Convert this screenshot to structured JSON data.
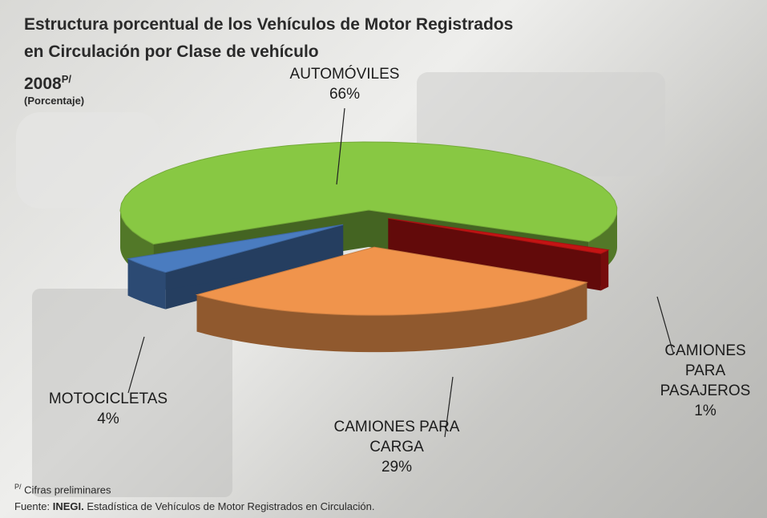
{
  "chart_data": {
    "type": "pie3d",
    "title_lines": [
      "Estructura porcentual de  los Vehículos de Motor  Registrados",
      "en Circulación por Clase de vehículo",
      "2008"
    ],
    "title_superscript": "P/",
    "subtitle": "(Porcentaje)",
    "categories": [
      "AUTOMÓVILES",
      "CAMIONES PARA PASAJEROS",
      "CAMIONES PARA CARGA",
      "MOTOCICLETAS"
    ],
    "values": [
      66,
      1,
      29,
      4
    ],
    "value_labels": [
      "66%",
      "1%",
      "29%",
      "4%"
    ],
    "colors": [
      "#88c843",
      "#c41414",
      "#f0944c",
      "#4a7cc0"
    ],
    "footnote_mark": "P/",
    "footnote": "Cifras preliminares",
    "source_label": "Fuente:",
    "source_org": "INEGI.",
    "source_text": "Estadística de Vehículos de Motor Registrados en Circulación."
  }
}
